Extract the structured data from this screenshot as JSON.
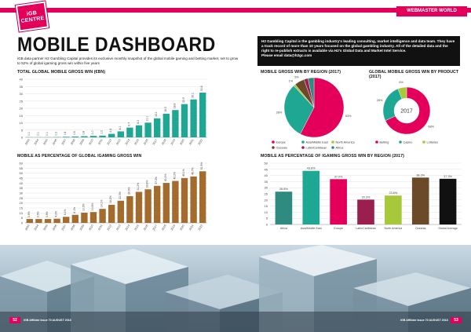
{
  "logo_text": "iGB CENTRE",
  "brand": "WEBMASTER WORLD",
  "title": "MOBILE DASHBOARD",
  "intro": "iGB data partner H2 Gambling Capital provides its exclusive monthly snapshot of the global mobile gaming and betting market, set to grow to 52% of global igaming gross win within five years",
  "about": {
    "text": "H2 Gambling Capital is the gambling industry's leading consulting, market intelligence and data team. They have a track record of more than 10 years focused on the global gambling industry. All of the detailed data and the right to re-publish extracts is available via H2's Global Data and Market Intel Service.",
    "email_line": "Please email data@h2gc.com"
  },
  "colors": {
    "accent": "#e4005a",
    "teal": "#1ea893",
    "brown": "#a36b2c",
    "dark": "#111111"
  },
  "chart_data": [
    {
      "type": "bar",
      "title": "TOTAL GLOBAL MOBILE GROSS WIN (€BN)",
      "categories": [
        "2003",
        "2004",
        "2005",
        "2006",
        "2007",
        "2008",
        "2009",
        "2010",
        "2011",
        "2012",
        "2013",
        "2014",
        "2015",
        "2016",
        "2017",
        "2018",
        "2019",
        "2020",
        "2021",
        "2022"
      ],
      "values": [
        0.1,
        0.1,
        0.1,
        0.2,
        0.4,
        0.6,
        0.8,
        1.0,
        1.2,
        2.4,
        4.1,
        6.7,
        8.3,
        10.1,
        13.1,
        16.3,
        18.8,
        22.9,
        26.1,
        30.8
      ],
      "labels": [
        "0.1",
        "0.1",
        "0.1",
        "0.2",
        "0.4",
        "0.6",
        "0.8",
        "1.0",
        "1.2",
        "2.4",
        "4.1",
        "6.7",
        "8.3",
        "10.1",
        "13.1",
        "16.3",
        "18.8",
        "22.9",
        "26.1",
        "30.8"
      ],
      "ylim": [
        0,
        40
      ],
      "yticks": [
        0,
        5,
        10,
        15,
        20,
        25,
        30,
        35,
        40
      ],
      "color": "#1ea893"
    },
    {
      "type": "bar",
      "title": "MOBILE AS PERCENTAGE OF GLOBAL IGAMING GROSS WIN",
      "categories": [
        "2003",
        "2004",
        "2005",
        "2006",
        "2007",
        "2008",
        "2009",
        "2010",
        "2011",
        "2012",
        "2013",
        "2014",
        "2015",
        "2016",
        "2017",
        "2018",
        "2019",
        "2020",
        "2021",
        "2022"
      ],
      "values": [
        3.9,
        3.9,
        3.9,
        4.2,
        6.1,
        8.1,
        10.3,
        10.9,
        14.1,
        18.2,
        22.3,
        26.9,
        31.2,
        33.8,
        37.3,
        40.2,
        42.2,
        45.1,
        46.7,
        51.9
      ],
      "labels": [
        "3.9%",
        "3.9%",
        "3.9%",
        "4.2%",
        "6.1%",
        "8.1%",
        "10.3%",
        "10.9%",
        "14.1%",
        "18.2%",
        "22.3%",
        "26.9%",
        "31.2%",
        "33.8%",
        "37.3%",
        "40.2%",
        "42.2%",
        "45.1%",
        "46.7%",
        "51.9%"
      ],
      "ylim": [
        0,
        60
      ],
      "yticks": [
        0,
        5,
        10,
        15,
        20,
        25,
        30,
        35,
        40,
        45,
        50,
        55,
        60
      ],
      "color": "#a36b2c"
    },
    {
      "type": "pie",
      "title": "MOBILE GROSS WIN BY REGION (2017)",
      "slices": [
        {
          "name": "Europe",
          "value": 53,
          "label": "53%",
          "color": "#e4005a"
        },
        {
          "name": "Asia/Middle East",
          "value": 28,
          "label": "28%",
          "color": "#1ea893"
        },
        {
          "name": "North America",
          "value": 1,
          "label": "1%",
          "color": "#a6c83a"
        },
        {
          "name": "Oceania",
          "value": 5,
          "label": "5%",
          "color": "#6b4a2a"
        },
        {
          "name": "Latin/Caribbean",
          "value": 2,
          "label": "2%",
          "color": "#9a1e4e"
        },
        {
          "name": "Africa",
          "value": 3,
          "label": "3%",
          "color": "#2f8a80"
        }
      ]
    },
    {
      "type": "pie",
      "title": "GLOBAL MOBILE GROSS WIN BY PRODUCT (2017)",
      "center_label": "2017",
      "slices": [
        {
          "name": "Betting",
          "value": 68,
          "label": "68%",
          "color": "#e4005a"
        },
        {
          "name": "Casino",
          "value": 26,
          "label": "26%",
          "color": "#1ea893"
        },
        {
          "name": "Lotteries",
          "value": 6,
          "label": "6%",
          "color": "#a6c83a"
        }
      ]
    },
    {
      "type": "bar",
      "title": "MOBILE AS PERCENTAGE OF IGAMING GROSS WIN BY REGION (2017)",
      "categories": [
        "Africa",
        "Asia/Middle East",
        "Europe",
        "Latin/Caribbean",
        "North America",
        "Oceania",
        "Global Average"
      ],
      "values": [
        26.8,
        43.8,
        37.0,
        20.3,
        23.6,
        38.3,
        37.3
      ],
      "labels": [
        "26.8%",
        "43.8%",
        "37.0%",
        "20.3%",
        "23.6%",
        "38.3%",
        "37.3%"
      ],
      "colors": [
        "#2f8a80",
        "#1ea893",
        "#e4005a",
        "#9a1e4e",
        "#a6c83a",
        "#6b4a2a",
        "#111111"
      ],
      "ylim": [
        0,
        50
      ],
      "yticks": [
        0,
        5,
        10,
        15,
        20,
        25,
        30,
        35,
        40,
        45,
        50
      ]
    }
  ],
  "footer": {
    "left_page": "52",
    "right_page": "53",
    "left_text": "iGB Affiliate  Issue 70  AUGUST 2018",
    "right_text": "iGB Affiliate  Issue 70  AUGUST 2018"
  }
}
